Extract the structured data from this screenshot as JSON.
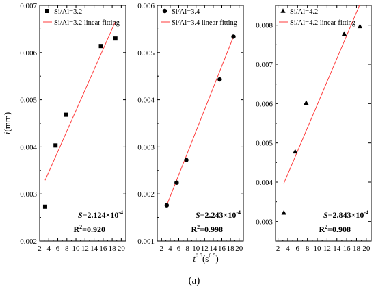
{
  "figure": {
    "caption": "(a)",
    "xlabel_main": "t",
    "xlabel_sup1": "0.5",
    "xlabel_unit": "(s",
    "xlabel_sup2": "0.5",
    "xlabel_close": ")",
    "ylabel_main": "i",
    "ylabel_unit": "(mm)"
  },
  "chart_data": [
    {
      "type": "scatter",
      "name": "Si/Al=3.2",
      "fit_name": "Si/Al=3.2 linear fitting",
      "marker": "square",
      "line_color": "#ff3b3b",
      "xlim": [
        2,
        21
      ],
      "xticks": [
        2,
        4,
        6,
        8,
        10,
        12,
        14,
        16,
        18,
        20
      ],
      "ylim": [
        0.002,
        0.007
      ],
      "yticks": [
        "0.002",
        "0.003",
        "0.004",
        "0.005",
        "0.006",
        "0.007"
      ],
      "points": [
        [
          3.2,
          0.00273
        ],
        [
          5.5,
          0.00403
        ],
        [
          7.75,
          0.00468
        ],
        [
          15.5,
          0.00614
        ],
        [
          18.7,
          0.0063
        ]
      ],
      "fit": [
        [
          3.2,
          0.00329
        ],
        [
          18.7,
          0.00666
        ]
      ],
      "S_label": "S",
      "S_value": "=2.124×10",
      "S_exp": "-4",
      "R2_label": "R",
      "R2_sup": "2",
      "R2_value": "=0.920"
    },
    {
      "type": "scatter",
      "name": "Si/Al=3.4",
      "fit_name": "Si/Al=3.4 linear fitting",
      "marker": "circle",
      "line_color": "#ff3b3b",
      "xlim": [
        1,
        21
      ],
      "xticks": [
        2,
        4,
        6,
        8,
        10,
        12,
        14,
        16,
        18,
        20
      ],
      "ylim": [
        0.001,
        0.006
      ],
      "yticks": [
        "0.001",
        "0.002",
        "0.003",
        "0.004",
        "0.005",
        "0.006"
      ],
      "points": [
        [
          3.2,
          0.00176
        ],
        [
          5.5,
          0.00224
        ],
        [
          7.75,
          0.00272
        ],
        [
          15.5,
          0.00443
        ],
        [
          18.7,
          0.00534
        ]
      ],
      "fit": [
        [
          3.2,
          0.00176
        ],
        [
          18.7,
          0.00534
        ]
      ],
      "S_label": "S",
      "S_value": "=2.243×10",
      "S_exp": "-4",
      "R2_label": "R",
      "R2_sup": "2",
      "R2_value": "=0.998"
    },
    {
      "type": "scatter",
      "name": "Si/Al=4.2",
      "fit_name": "Si/Al=4.2 linear fitting",
      "marker": "triangle",
      "line_color": "#ff3b3b",
      "xlim": [
        1.5,
        21
      ],
      "xticks": [
        2,
        4,
        6,
        8,
        10,
        12,
        14,
        16,
        18,
        20
      ],
      "ylim": [
        0.0025,
        0.0085
      ],
      "yticks": [
        "0.003",
        "0.004",
        "0.005",
        "0.006",
        "0.007",
        "0.008"
      ],
      "points": [
        [
          3.2,
          0.00322
        ],
        [
          5.5,
          0.00478
        ],
        [
          7.75,
          0.00602
        ],
        [
          15.5,
          0.00778
        ],
        [
          18.7,
          0.00797
        ]
      ],
      "fit": [
        [
          3.2,
          0.00397
        ],
        [
          18.7,
          0.00853
        ]
      ],
      "S_label": "S",
      "S_value": "=2.843×10",
      "S_exp": "-4",
      "R2_label": "R",
      "R2_sup": "2",
      "R2_value": "=0.908"
    }
  ]
}
